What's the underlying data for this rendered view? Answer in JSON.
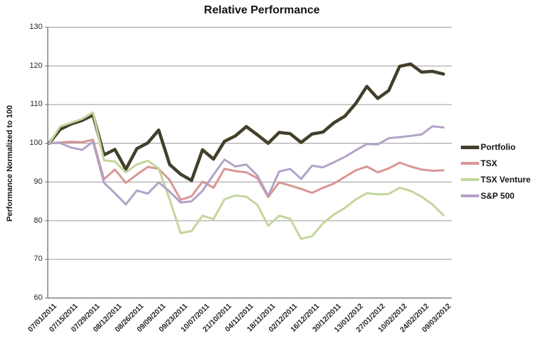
{
  "title": "Relative Performance",
  "y_axis": {
    "title": "Performance Normalized to 100",
    "min": 60,
    "max": 130,
    "step": 10,
    "ticks": [
      "130",
      "120",
      "110",
      "100",
      "90",
      "80",
      "70",
      "60"
    ]
  },
  "x_axis": {
    "labels": [
      "07/01/2011",
      "07/15/2011",
      "07/29/2011",
      "08/12/2011",
      "08/26/2011",
      "09/09/2011",
      "09/23/2011",
      "10/07/2011",
      "21/10/2011",
      "04/11/2011",
      "18/11/2011",
      "02/12/2011",
      "16/12/2011",
      "30/12/2011",
      "13/01/2012",
      "27/01/2012",
      "10/02/2012",
      "24/02/2012",
      "09/03/2012"
    ]
  },
  "chart_data": {
    "type": "line",
    "title": "Relative Performance",
    "xlabel": "",
    "ylabel": "Performance Normalized to 100",
    "ylim": [
      60,
      130
    ],
    "grid": true,
    "legend_position": "right",
    "x_tick_labels": [
      "07/01/2011",
      "07/15/2011",
      "07/29/2011",
      "08/12/2011",
      "08/26/2011",
      "09/09/2011",
      "09/23/2011",
      "10/07/2011",
      "21/10/2011",
      "04/11/2011",
      "18/11/2011",
      "02/12/2011",
      "16/12/2011",
      "30/12/2011",
      "13/01/2012",
      "27/01/2012",
      "10/02/2012",
      "24/02/2012",
      "09/03/2012"
    ],
    "label_every": 2,
    "points_count": 37,
    "series": [
      {
        "name": "Portfolio",
        "color": "#433f2b",
        "line_width": 4.5,
        "legend_swatch_height": 5,
        "values": [
          100,
          103.6,
          105,
          105.9,
          107.3,
          97,
          98.4,
          93.3,
          98.6,
          100.1,
          103.4,
          94.5,
          92,
          90.4,
          98.3,
          95.9,
          100.5,
          101.9,
          104.3,
          102.2,
          100,
          102.8,
          102.5,
          100.2,
          102.4,
          102.9,
          105.3,
          107,
          110.3,
          114.7,
          111.6,
          113.6,
          119.9,
          120.5,
          118.4,
          118.6,
          117.9
        ]
      },
      {
        "name": "TSX",
        "color": "#d99694",
        "line_width": 3,
        "legend_swatch_height": 3.5,
        "values": [
          100,
          100.2,
          100.4,
          100.3,
          100.9,
          90.7,
          93.2,
          89.8,
          91.9,
          93.9,
          93.4,
          90.5,
          85.4,
          86.3,
          90.1,
          88.5,
          93.4,
          92.8,
          92.5,
          91,
          86.1,
          89.9,
          89.1,
          88.2,
          87.2,
          88.5,
          89.6,
          91.3,
          93,
          94,
          92.5,
          93.5,
          95,
          94,
          93.2,
          92.9,
          93
        ]
      },
      {
        "name": "TSX Venture",
        "color": "#c3d69b",
        "line_width": 3,
        "legend_swatch_height": 3.5,
        "values": [
          100,
          104.3,
          105.3,
          106.3,
          108,
          95.6,
          95.3,
          92.5,
          94.5,
          95.5,
          93.5,
          85.5,
          76.8,
          77.3,
          81.3,
          80.4,
          85.5,
          86.5,
          86.2,
          84.1,
          78.7,
          81.3,
          80.5,
          75.3,
          76,
          79.3,
          81.6,
          83.3,
          85.5,
          87.1,
          86.8,
          86.9,
          88.5,
          87.7,
          86.2,
          84.2,
          81.4
        ]
      },
      {
        "name": "S&P 500",
        "color": "#b2a2c7",
        "line_width": 3,
        "legend_swatch_height": 3.5,
        "values": [
          100,
          100.1,
          98.9,
          98.3,
          100.4,
          89.8,
          87.1,
          84.2,
          87.8,
          87,
          89.9,
          87.5,
          84.7,
          85,
          87.7,
          91.9,
          95.8,
          94,
          94.5,
          91.7,
          86.4,
          92.7,
          93.4,
          90.8,
          94.2,
          93.8,
          95.1,
          96.5,
          98.2,
          99.8,
          99.7,
          101.3,
          101.6,
          101.9,
          102.3,
          104.4,
          104.1
        ]
      }
    ],
    "colors": {
      "gridline": "#999999",
      "axis": "#7f7f7f",
      "text": "#262626"
    }
  }
}
